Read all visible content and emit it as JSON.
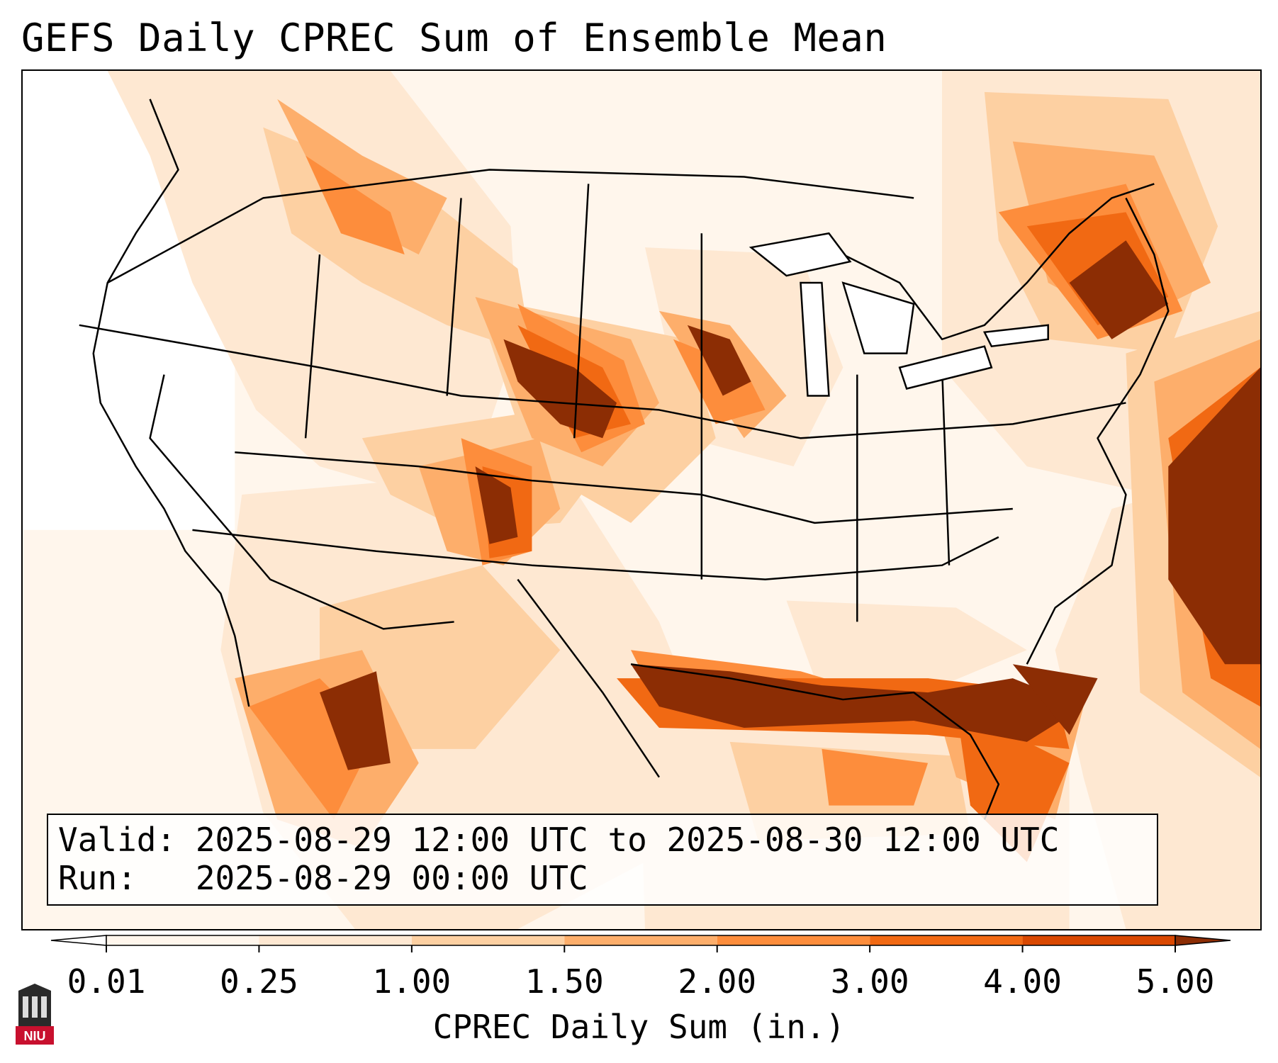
{
  "title": "GEFS Daily CPREC Sum of Ensemble Mean",
  "info": {
    "valid_line": "Valid: 2025-08-29 12:00 UTC to 2025-08-30 12:00 UTC",
    "run_line": "Run:   2025-08-29 00:00 UTC"
  },
  "colorbar": {
    "label": "CPREC Daily Sum (in.)",
    "ticks": [
      "0.01",
      "0.25",
      "1.00",
      "1.50",
      "2.00",
      "3.00",
      "4.00",
      "5.00"
    ],
    "colors": [
      "#fff6ec",
      "#fee8d2",
      "#fdd0a2",
      "#fdae6b",
      "#fd8d3c",
      "#f16913",
      "#d94801",
      "#8c2d04"
    ],
    "extend_low_color": "#ffffff",
    "extend_high_color": "#8c2d04"
  },
  "logo": {
    "text": "NIU",
    "icon": "university-tower-icon"
  },
  "map": {
    "region": "Contiguous United States",
    "basemap": [
      "state-borders",
      "coastlines",
      "lakes"
    ]
  }
}
